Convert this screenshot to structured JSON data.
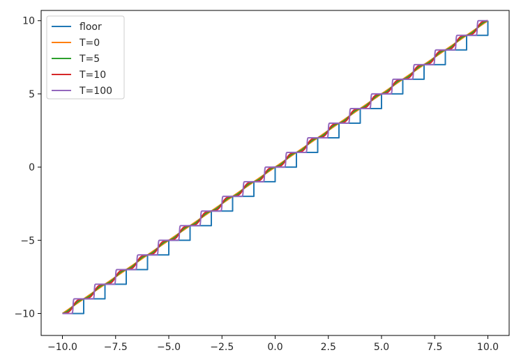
{
  "chart_data": {
    "type": "line",
    "title": "",
    "xlabel": "",
    "ylabel": "",
    "xlim": [
      -11.0,
      11.0
    ],
    "ylim": [
      -11.5,
      10.7
    ],
    "x_range": [
      -10,
      10
    ],
    "grid": false,
    "legend_position": "top-left",
    "xticks": [
      -10.0,
      -7.5,
      -5.0,
      -2.5,
      0.0,
      2.5,
      5.0,
      7.5,
      10.0
    ],
    "xtick_labels": [
      "−10.0",
      "−7.5",
      "−5.0",
      "−2.5",
      "0.0",
      "2.5",
      "5.0",
      "7.5",
      "10.0"
    ],
    "yticks": [
      -10,
      -5,
      0,
      5,
      10
    ],
    "ytick_labels": [
      "−10",
      "−5",
      "0",
      "5",
      "10"
    ],
    "series": [
      {
        "name": "floor",
        "color": "#1f77b4",
        "temperature": null
      },
      {
        "name": "T=0",
        "color": "#ff7f0e",
        "temperature": 0
      },
      {
        "name": "T=5",
        "color": "#2ca02c",
        "temperature": 5
      },
      {
        "name": "T=10",
        "color": "#d62728",
        "temperature": 10
      },
      {
        "name": "T=100",
        "color": "#9467bd",
        "temperature": 100
      }
    ]
  }
}
